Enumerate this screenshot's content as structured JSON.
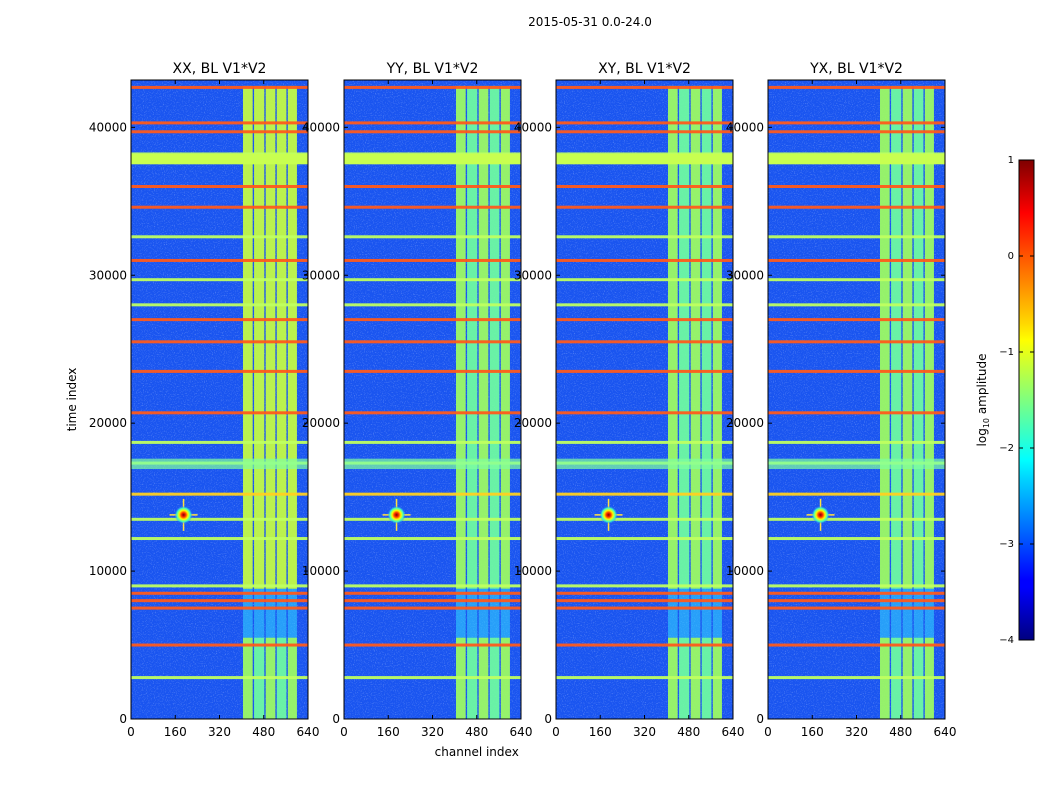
{
  "suptitle": "2015-05-31 0.0-24.0",
  "chart_data": [
    {
      "type": "heatmap",
      "title": "XX, BL V1*V2",
      "xlabel": "",
      "ylabel": "time index",
      "xlim": [
        0,
        640
      ],
      "ylim": [
        0,
        43200
      ],
      "xticks": [
        0,
        160,
        320,
        480,
        640
      ],
      "yticks": [
        0,
        10000,
        20000,
        30000,
        40000
      ],
      "yticklabels": [
        "0",
        "10000",
        "20000",
        "30000",
        "40000"
      ],
      "band_channels": [
        [
          405,
          440
        ],
        [
          445,
          482
        ],
        [
          487,
          522
        ],
        [
          527,
          562
        ],
        [
          567,
          600
        ]
      ],
      "band_gap": [
        5500,
        8800
      ],
      "source": {
        "x": 190,
        "y": 13800
      }
    },
    {
      "type": "heatmap",
      "title": "YY, BL V1*V2",
      "xlabel": "channel index",
      "ylabel": "",
      "xlim": [
        0,
        640
      ],
      "ylim": [
        0,
        43200
      ],
      "xticks": [
        0,
        160,
        320,
        480,
        640
      ],
      "yticks": [
        0,
        10000,
        20000,
        30000,
        40000
      ],
      "yticklabels": [
        "0",
        "10000",
        "20000",
        "30000",
        "40000"
      ],
      "band_channels": [
        [
          405,
          440
        ],
        [
          445,
          482
        ],
        [
          487,
          522
        ],
        [
          527,
          562
        ],
        [
          567,
          600
        ]
      ],
      "band_gap": [
        5500,
        8800
      ],
      "source": {
        "x": 190,
        "y": 13800
      }
    },
    {
      "type": "heatmap",
      "title": "XY, BL V1*V2",
      "xlabel": "",
      "ylabel": "",
      "xlim": [
        0,
        640
      ],
      "ylim": [
        0,
        43200
      ],
      "xticks": [
        0,
        160,
        320,
        480,
        640
      ],
      "yticks": [
        0,
        10000,
        20000,
        30000,
        40000
      ],
      "yticklabels": [
        "0",
        "10000",
        "20000",
        "30000",
        "40000"
      ],
      "band_channels": [
        [
          405,
          440
        ],
        [
          445,
          482
        ],
        [
          487,
          522
        ],
        [
          527,
          562
        ],
        [
          567,
          600
        ]
      ],
      "band_gap": [
        5500,
        8800
      ],
      "source": {
        "x": 190,
        "y": 13800
      }
    },
    {
      "type": "heatmap",
      "title": "YX, BL V1*V2",
      "xlabel": "",
      "ylabel": "",
      "xlim": [
        0,
        640
      ],
      "ylim": [
        0,
        43200
      ],
      "xticks": [
        0,
        160,
        320,
        480,
        640
      ],
      "yticks": [
        0,
        10000,
        20000,
        30000,
        40000
      ],
      "yticklabels": [
        "0",
        "10000",
        "20000",
        "30000",
        "40000"
      ],
      "band_channels": [
        [
          405,
          440
        ],
        [
          445,
          482
        ],
        [
          487,
          522
        ],
        [
          527,
          562
        ],
        [
          567,
          600
        ]
      ],
      "band_gap": [
        5500,
        8800
      ],
      "source": {
        "x": 190,
        "y": 13800
      }
    }
  ],
  "rfi_rows": [
    {
      "t": 2800,
      "level": 0.6
    },
    {
      "t": 5000,
      "level": 0.85
    },
    {
      "t": 7500,
      "level": 0.9
    },
    {
      "t": 8000,
      "level": 0.9
    },
    {
      "t": 8500,
      "level": 0.85
    },
    {
      "t": 9000,
      "level": 0.6
    },
    {
      "t": 12200,
      "level": 0.6
    },
    {
      "t": 13500,
      "level": 0.6
    },
    {
      "t": 15200,
      "level": 0.65
    },
    {
      "t": 17300,
      "level": 0.55
    },
    {
      "t": 18700,
      "level": 0.55
    },
    {
      "t": 20700,
      "level": 0.9
    },
    {
      "t": 23500,
      "level": 0.85
    },
    {
      "t": 25500,
      "level": 0.85
    },
    {
      "t": 27000,
      "level": 0.85
    },
    {
      "t": 28000,
      "level": 0.6
    },
    {
      "t": 29700,
      "level": 0.55
    },
    {
      "t": 31000,
      "level": 0.85
    },
    {
      "t": 32600,
      "level": 0.6
    },
    {
      "t": 34600,
      "level": 0.85
    },
    {
      "t": 36000,
      "level": 0.85
    },
    {
      "t": 37700,
      "level": 0.65
    },
    {
      "t": 38200,
      "level": 0.6
    },
    {
      "t": 39700,
      "level": 0.9
    },
    {
      "t": 40300,
      "level": 0.85
    },
    {
      "t": 42700,
      "level": 0.85
    }
  ],
  "colorbar": {
    "label_prefix": "log",
    "label_sub": "10",
    "label_suffix": " amplitude",
    "ticks": [
      1,
      0,
      -1,
      -2,
      -3,
      -4
    ],
    "ticklabels": [
      "1",
      "0",
      "−1",
      "−2",
      "−3",
      "−4"
    ],
    "range": [
      -4,
      1
    ],
    "colormap": "jet"
  }
}
